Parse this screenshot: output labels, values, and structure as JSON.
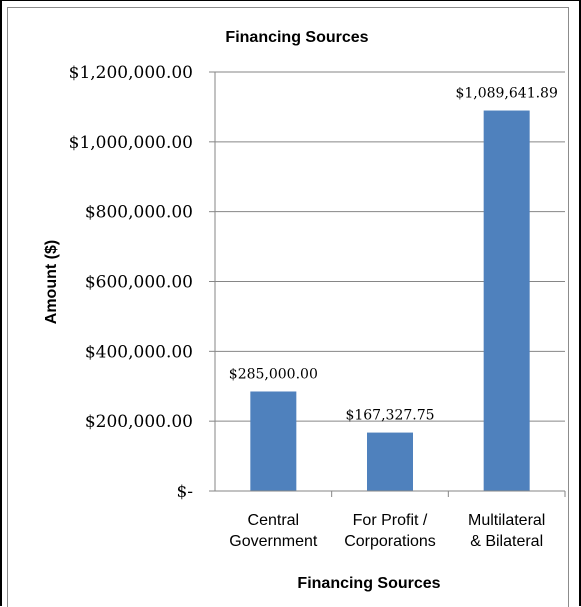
{
  "chart_data": {
    "type": "bar",
    "title": "Financing Sources",
    "xlabel": "Financing Sources",
    "ylabel": "Amount ($)",
    "categories": [
      [
        "Central",
        "Government"
      ],
      [
        "For Profit /",
        "Corporations"
      ],
      [
        "Multilateral",
        "& Bilateral"
      ]
    ],
    "values": [
      285000.0,
      167327.75,
      1089641.89
    ],
    "data_labels": [
      "$285,000.00",
      "$167,327.75",
      "$1,089,641.89"
    ],
    "ylim": [
      0,
      1200000
    ],
    "yticks": [
      0,
      200000,
      400000,
      600000,
      800000,
      1000000,
      1200000
    ],
    "ytick_labels": [
      "$-",
      "$200,000.00",
      "$400,000.00",
      "$600,000.00",
      "$800,000.00",
      "$1,000,000.00",
      "$1,200,000.00"
    ],
    "grid": true,
    "bar_color": "#4f81bd",
    "grid_color": "#868686"
  }
}
